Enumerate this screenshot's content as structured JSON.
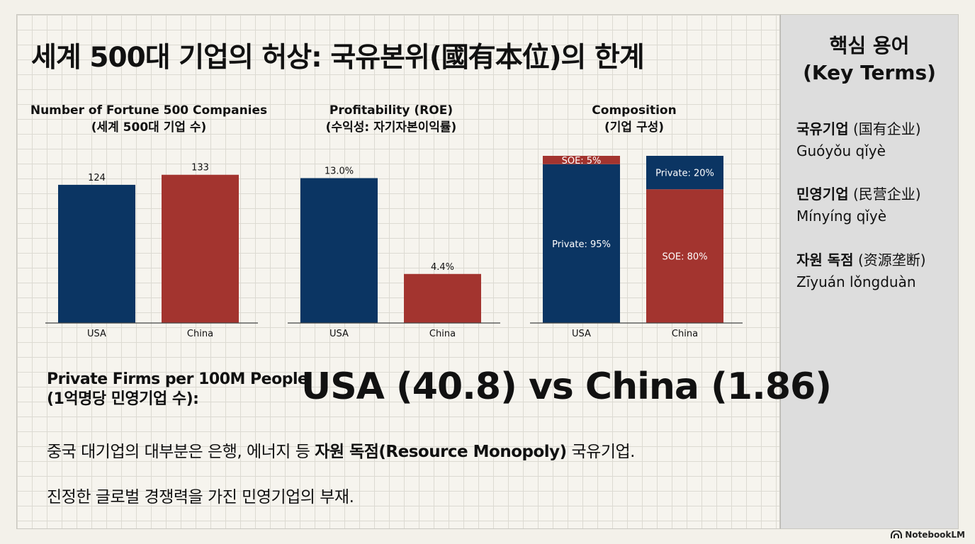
{
  "title": "세계 500대 기업의 허상: 국유본위(國有本位)의 한계",
  "colors": {
    "usa": "#0b3563",
    "china": "#a3342f"
  },
  "chart_data": [
    {
      "type": "bar",
      "title": "Number of Fortune 500 Companies",
      "subtitle": "(세계 500대 기업 수)",
      "categories": [
        "USA",
        "China"
      ],
      "values": [
        124,
        133
      ],
      "data_labels": [
        "124",
        "133"
      ],
      "ylim": [
        0,
        150
      ]
    },
    {
      "type": "bar",
      "title": "Profitability (ROE)",
      "subtitle": "(수익성: 자기자본이익률)",
      "categories": [
        "USA",
        "China"
      ],
      "values": [
        13.0,
        4.4
      ],
      "data_labels": [
        "13.0%",
        "4.4%"
      ],
      "ylim": [
        0,
        15
      ]
    },
    {
      "type": "bar",
      "stacked": true,
      "title": "Composition",
      "subtitle": "(기업 구성)",
      "categories": [
        "USA",
        "China"
      ],
      "series": [
        {
          "values": [
            95,
            20
          ],
          "labels": [
            "Private: 95%",
            "Private: 20%"
          ]
        },
        {
          "values": [
            5,
            80
          ],
          "labels": [
            "SOE: 5%",
            "SOE: 80%"
          ]
        }
      ],
      "ylim": [
        0,
        100
      ]
    }
  ],
  "private_firms": {
    "label_line1": "Private Firms per 100M People",
    "label_line2": "(1억명당 민영기업 수):",
    "comparison": "USA (40.8) vs China (1.86)"
  },
  "body": {
    "line1_pre": "중국 대기업의 대부분은 은행, 에너지 등 ",
    "line1_bold": "자원 독점(Resource Monopoly)",
    "line1_post": " 국유기업.",
    "line2": "진정한 글로벌 경쟁력을 가진 민영기업의 부재."
  },
  "sidebar": {
    "title_line1": "핵심 용어",
    "title_line2": "(Key Terms)",
    "terms": [
      {
        "ko": "국유기업",
        "zh": "(国有企业)",
        "pinyin": "Guóyǒu qǐyè"
      },
      {
        "ko": "민영기업",
        "zh": "(民营企业)",
        "pinyin": "Mínyíng qǐyè"
      },
      {
        "ko": "자원 독점",
        "zh": "(资源垄断)",
        "pinyin": "Zīyuán lǒngduàn"
      }
    ]
  },
  "brand": {
    "name": "NotebookLM",
    "icon": "notebooklm-logo-icon"
  }
}
